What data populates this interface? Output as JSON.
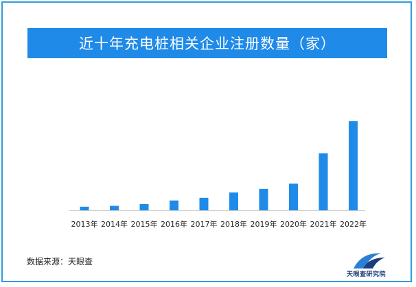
{
  "title": "近十年充电桩相关企业注册数量（家）",
  "source": "数据来源：天眼查",
  "logo_text": "天眼查研究院",
  "colors": {
    "bar": "#1f8ae8",
    "title_bg": "#1f8ae8",
    "frame": "#2e9be0",
    "axis": "#cccccc",
    "logo_dark": "#1a3f7a",
    "logo_light": "#2b7fd4"
  },
  "chart_data": {
    "type": "bar",
    "categories": [
      "2013年",
      "2014年",
      "2015年",
      "2016年",
      "2017年",
      "2018年",
      "2019年",
      "2020年",
      "2021年",
      "2022年"
    ],
    "values": [
      4,
      5,
      7,
      11,
      14,
      20,
      24,
      30,
      64,
      100
    ],
    "ylim": [
      0,
      100
    ],
    "grid": false,
    "legend": "none"
  }
}
